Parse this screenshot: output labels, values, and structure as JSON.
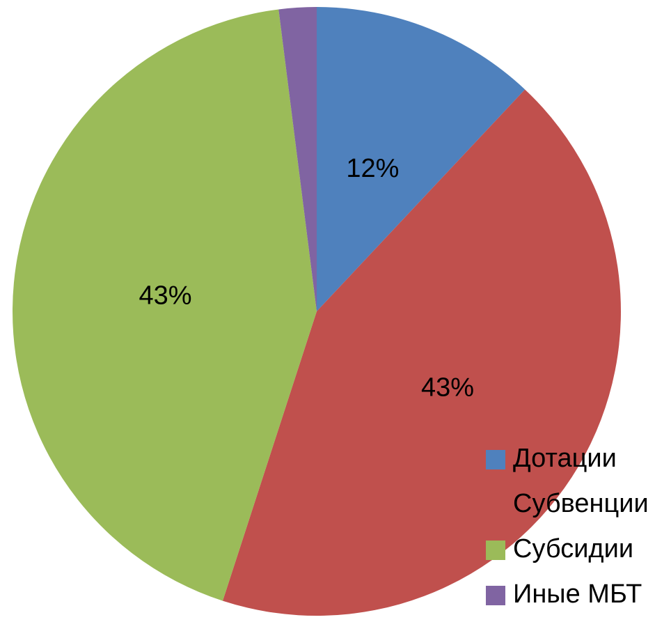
{
  "chart_data": {
    "type": "pie",
    "categories": [
      "Дотации",
      "Субвенции",
      "Субсидии",
      "Иные МБТ"
    ],
    "values": [
      12,
      43,
      43,
      2
    ],
    "value_labels": [
      "12%",
      "43%",
      "43%",
      null
    ],
    "colors": [
      "#4f81bd",
      "#c0504d",
      "#9bbb59",
      "#8064a2"
    ],
    "legend": "bottom-right"
  }
}
